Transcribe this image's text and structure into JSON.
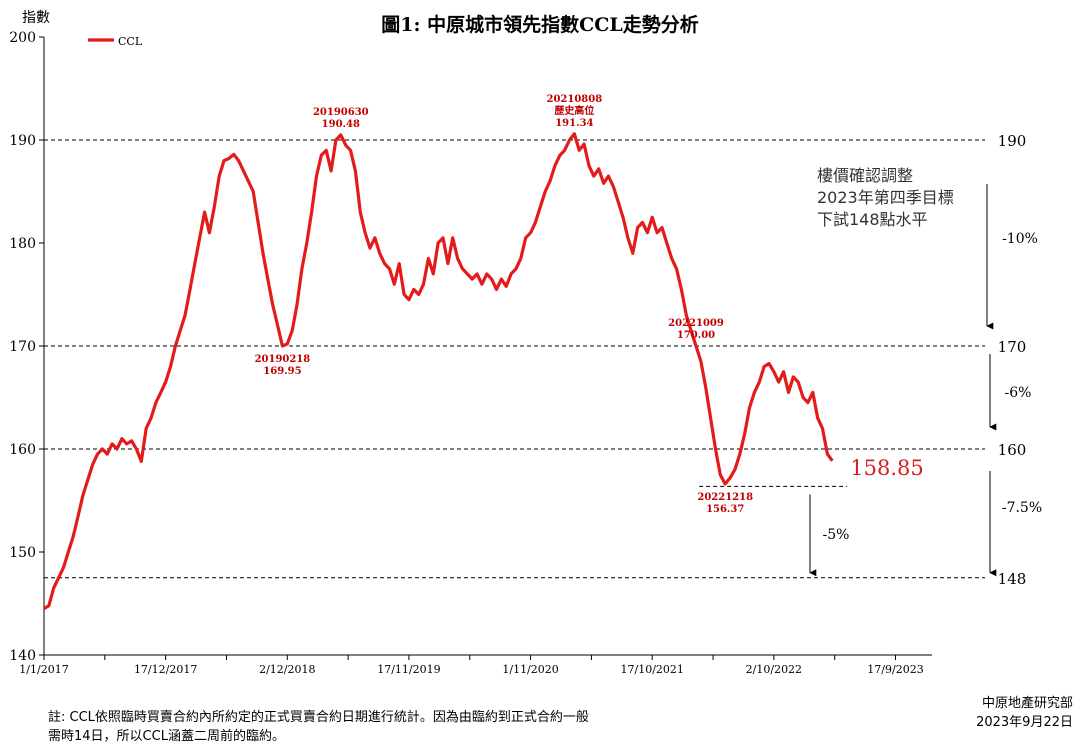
{
  "chart_data": {
    "type": "line",
    "title": "圖1: 中原城市領先指數CCL走勢分析",
    "ylabel": "指數",
    "ylim": [
      140,
      200
    ],
    "yticks": [
      140,
      150,
      160,
      170,
      180,
      190,
      200
    ],
    "xlim": [
      "2017-01-01",
      "2023-12-31"
    ],
    "xticks": [
      {
        "date": "2017-01-01",
        "label": "1/1/2017"
      },
      {
        "date": "2017-12-17",
        "label": "17/12/2017"
      },
      {
        "date": "2018-12-02",
        "label": "2/12/2018"
      },
      {
        "date": "2019-11-17",
        "label": "17/11/2019"
      },
      {
        "date": "2020-11-01",
        "label": "1/11/2020"
      },
      {
        "date": "2021-10-17",
        "label": "17/10/2021"
      },
      {
        "date": "2022-10-02",
        "label": "2/10/2022"
      },
      {
        "date": "2023-09-17",
        "label": "17/9/2023"
      }
    ],
    "legend": {
      "position": "top-left",
      "entries": [
        "CCL"
      ]
    },
    "series": [
      {
        "name": "CCL",
        "color": "#e31b1b",
        "points": [
          [
            "2017-01-01",
            144.5
          ],
          [
            "2017-01-15",
            144.8
          ],
          [
            "2017-01-29",
            146.5
          ],
          [
            "2017-02-12",
            147.5
          ],
          [
            "2017-02-26",
            148.5
          ],
          [
            "2017-03-12",
            150.0
          ],
          [
            "2017-03-26",
            151.5
          ],
          [
            "2017-04-09",
            153.5
          ],
          [
            "2017-04-23",
            155.5
          ],
          [
            "2017-05-07",
            157.0
          ],
          [
            "2017-05-21",
            158.5
          ],
          [
            "2017-06-04",
            159.5
          ],
          [
            "2017-06-18",
            160.0
          ],
          [
            "2017-07-02",
            159.5
          ],
          [
            "2017-07-16",
            160.5
          ],
          [
            "2017-07-30",
            160.0
          ],
          [
            "2017-08-13",
            161.0
          ],
          [
            "2017-08-27",
            160.5
          ],
          [
            "2017-09-10",
            160.8
          ],
          [
            "2017-09-24",
            160.0
          ],
          [
            "2017-10-08",
            158.8
          ],
          [
            "2017-10-22",
            162.0
          ],
          [
            "2017-11-05",
            163.0
          ],
          [
            "2017-11-19",
            164.5
          ],
          [
            "2017-12-03",
            165.5
          ],
          [
            "2017-12-17",
            166.5
          ],
          [
            "2017-12-31",
            168.0
          ],
          [
            "2018-01-14",
            170.0
          ],
          [
            "2018-01-28",
            171.5
          ],
          [
            "2018-02-11",
            173.0
          ],
          [
            "2018-02-25",
            175.5
          ],
          [
            "2018-03-11",
            178.0
          ],
          [
            "2018-03-25",
            180.5
          ],
          [
            "2018-04-08",
            183.0
          ],
          [
            "2018-04-22",
            181.0
          ],
          [
            "2018-05-06",
            183.5
          ],
          [
            "2018-05-20",
            186.5
          ],
          [
            "2018-06-03",
            188.0
          ],
          [
            "2018-06-17",
            188.2
          ],
          [
            "2018-07-01",
            188.6
          ],
          [
            "2018-07-15",
            188.0
          ],
          [
            "2018-07-29",
            187.0
          ],
          [
            "2018-08-12",
            186.0
          ],
          [
            "2018-08-26",
            185.0
          ],
          [
            "2018-09-09",
            182.0
          ],
          [
            "2018-09-23",
            179.0
          ],
          [
            "2018-10-07",
            176.5
          ],
          [
            "2018-10-21",
            174.0
          ],
          [
            "2018-11-04",
            172.0
          ],
          [
            "2018-11-18",
            170.0
          ],
          [
            "2018-12-02",
            170.2
          ],
          [
            "2018-12-16",
            171.5
          ],
          [
            "2018-12-30",
            174.0
          ],
          [
            "2019-01-13",
            177.5
          ],
          [
            "2019-01-27",
            180.0
          ],
          [
            "2019-02-10",
            183.0
          ],
          [
            "2019-02-24",
            186.5
          ],
          [
            "2019-03-10",
            188.5
          ],
          [
            "2019-03-24",
            189.0
          ],
          [
            "2019-04-07",
            187.0
          ],
          [
            "2019-04-21",
            190.0
          ],
          [
            "2019-05-05",
            190.5
          ],
          [
            "2019-05-19",
            189.5
          ],
          [
            "2019-06-02",
            189.0
          ],
          [
            "2019-06-16",
            187.0
          ],
          [
            "2019-06-30",
            183.0
          ],
          [
            "2019-07-14",
            181.0
          ],
          [
            "2019-07-28",
            179.5
          ],
          [
            "2019-08-11",
            180.5
          ],
          [
            "2019-08-25",
            179.0
          ],
          [
            "2019-09-08",
            178.0
          ],
          [
            "2019-09-22",
            177.5
          ],
          [
            "2019-10-06",
            176.0
          ],
          [
            "2019-10-20",
            178.0
          ],
          [
            "2019-11-03",
            175.0
          ],
          [
            "2019-11-17",
            174.5
          ],
          [
            "2019-12-01",
            175.5
          ],
          [
            "2019-12-15",
            175.0
          ],
          [
            "2019-12-29",
            176.0
          ],
          [
            "2020-01-12",
            178.5
          ],
          [
            "2020-01-26",
            177.0
          ],
          [
            "2020-02-09",
            180.0
          ],
          [
            "2020-02-23",
            180.5
          ],
          [
            "2020-03-08",
            178.0
          ],
          [
            "2020-03-22",
            180.5
          ],
          [
            "2020-04-05",
            178.5
          ],
          [
            "2020-04-19",
            177.5
          ],
          [
            "2020-05-03",
            177.0
          ],
          [
            "2020-05-17",
            176.5
          ],
          [
            "2020-05-31",
            177.0
          ],
          [
            "2020-06-14",
            176.0
          ],
          [
            "2020-06-28",
            177.0
          ],
          [
            "2020-07-12",
            176.5
          ],
          [
            "2020-07-26",
            175.5
          ],
          [
            "2020-08-09",
            176.5
          ],
          [
            "2020-08-23",
            175.8
          ],
          [
            "2020-09-06",
            177.0
          ],
          [
            "2020-09-20",
            177.5
          ],
          [
            "2020-10-04",
            178.5
          ],
          [
            "2020-10-18",
            180.5
          ],
          [
            "2020-11-01",
            181.0
          ],
          [
            "2020-11-15",
            182.0
          ],
          [
            "2020-11-29",
            183.5
          ],
          [
            "2020-12-13",
            185.0
          ],
          [
            "2020-12-27",
            186.0
          ],
          [
            "2021-01-10",
            187.5
          ],
          [
            "2021-01-24",
            188.5
          ],
          [
            "2021-02-07",
            189.0
          ],
          [
            "2021-02-21",
            190.0
          ],
          [
            "2021-03-07",
            190.6
          ],
          [
            "2021-03-21",
            189.0
          ],
          [
            "2021-04-04",
            189.6
          ],
          [
            "2021-04-18",
            187.5
          ],
          [
            "2021-05-02",
            186.5
          ],
          [
            "2021-05-16",
            187.2
          ],
          [
            "2021-05-30",
            185.8
          ],
          [
            "2021-06-13",
            186.5
          ],
          [
            "2021-06-27",
            185.5
          ],
          [
            "2021-07-11",
            184.0
          ],
          [
            "2021-07-25",
            182.5
          ],
          [
            "2021-08-08",
            180.5
          ],
          [
            "2021-08-22",
            179.0
          ],
          [
            "2021-09-05",
            181.5
          ],
          [
            "2021-09-19",
            182.0
          ],
          [
            "2021-10-03",
            181.0
          ],
          [
            "2021-10-17",
            182.5
          ],
          [
            "2021-10-31",
            181.0
          ],
          [
            "2021-11-14",
            181.5
          ],
          [
            "2021-11-28",
            180.0
          ],
          [
            "2021-12-12",
            178.5
          ],
          [
            "2021-12-26",
            177.5
          ],
          [
            "2022-01-09",
            175.5
          ],
          [
            "2022-01-23",
            173.0
          ],
          [
            "2022-02-06",
            171.5
          ],
          [
            "2022-02-20",
            170.0
          ],
          [
            "2022-03-06",
            168.5
          ],
          [
            "2022-03-20",
            166.0
          ],
          [
            "2022-04-03",
            163.0
          ],
          [
            "2022-04-17",
            160.0
          ],
          [
            "2022-05-01",
            157.5
          ],
          [
            "2022-05-15",
            156.6
          ],
          [
            "2022-05-29",
            157.2
          ],
          [
            "2022-06-12",
            158.0
          ],
          [
            "2022-06-26",
            159.5
          ],
          [
            "2022-07-10",
            161.5
          ],
          [
            "2022-07-24",
            164.0
          ],
          [
            "2022-08-07",
            165.5
          ],
          [
            "2022-08-21",
            166.5
          ],
          [
            "2022-09-04",
            168.0
          ],
          [
            "2022-09-18",
            168.3
          ],
          [
            "2022-10-02",
            167.5
          ],
          [
            "2022-10-16",
            166.5
          ],
          [
            "2022-10-30",
            167.5
          ],
          [
            "2022-11-13",
            165.5
          ],
          [
            "2022-11-27",
            167.0
          ],
          [
            "2022-12-11",
            166.5
          ],
          [
            "2022-12-25",
            165.0
          ],
          [
            "2023-01-08",
            164.5
          ],
          [
            "2023-01-22",
            165.5
          ],
          [
            "2023-02-05",
            163.0
          ],
          [
            "2023-02-19",
            162.0
          ],
          [
            "2023-03-05",
            159.5
          ],
          [
            "2023-03-19",
            158.85
          ]
        ]
      }
    ],
    "reference_lines": [
      {
        "value": 190,
        "label": "190",
        "style": "dashed"
      },
      {
        "value": 170,
        "label": "170",
        "style": "dashed"
      },
      {
        "value": 160,
        "label": "160",
        "style": "dashed"
      },
      {
        "value": 147.5,
        "label": "148",
        "style": "dashed"
      },
      {
        "value": 156.37,
        "label": "",
        "style": "dashed",
        "from": "2022-03-01",
        "to": "2023-05-01"
      }
    ],
    "annotations": [
      {
        "date_label": "20190630",
        "value_label": "190.48",
        "anchor_date": "2019-05-05",
        "anchor_value": 190.5,
        "position": "above"
      },
      {
        "date_label": "20210808",
        "extra": "歷史高位",
        "value_label": "191.34",
        "anchor_date": "2021-03-07",
        "anchor_value": 190.6,
        "position": "above"
      },
      {
        "date_label": "20190218",
        "value_label": "169.95",
        "anchor_date": "2018-11-18",
        "anchor_value": 170.0,
        "position": "below"
      },
      {
        "date_label": "20221009",
        "value_label": "170.00",
        "anchor_date": "2022-02-20",
        "anchor_value": 170.0,
        "position": "above"
      },
      {
        "date_label": "20221218",
        "value_label": "156.37",
        "anchor_date": "2022-05-15",
        "anchor_value": 156.6,
        "position": "below"
      }
    ],
    "last_value_label": "158.85",
    "pct_labels": [
      "-10%",
      "-6%",
      "-7.5%",
      "-5%"
    ],
    "note_lines": [
      "樓價確認調整",
      "2023年第四季目標",
      "下試148點水平"
    ]
  },
  "footnote": {
    "lines": [
      "註: CCL依照臨時買賣合約內所約定的正式買賣合約日期進行統計。因為由臨約到正式合約一般",
      "需時14日，所以CCL涵蓋二周前的臨約。"
    ]
  },
  "source": {
    "org": "中原地產研究部",
    "date": "2023年9月22日"
  }
}
